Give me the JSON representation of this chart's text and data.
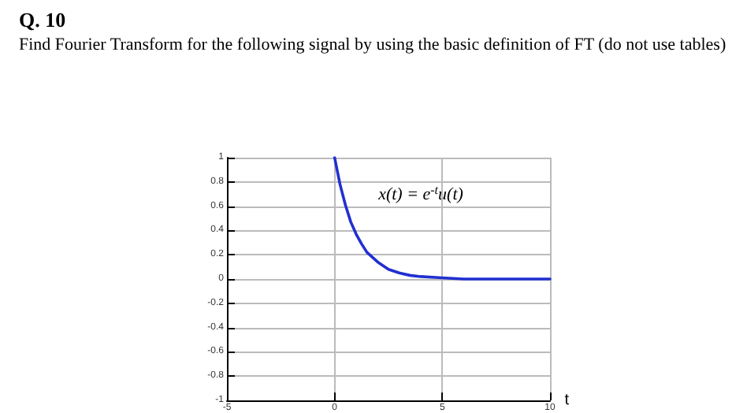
{
  "chart_data": {
    "type": "line",
    "title": "Q. 10",
    "subtitle": "Find Fourier Transform for the following signal by using the basic definition of FT (do not use tables)",
    "xlabel": "t",
    "x": [
      0,
      0.25,
      0.5,
      0.75,
      1,
      1.25,
      1.5,
      2,
      2.5,
      3,
      3.5,
      4,
      5,
      6,
      10
    ],
    "series": [
      {
        "color": "#2130d0",
        "values": [
          1,
          0.78,
          0.61,
          0.47,
          0.37,
          0.29,
          0.22,
          0.14,
          0.08,
          0.05,
          0.03,
          0.02,
          0.01,
          0,
          0
        ]
      }
    ],
    "annotations": [
      "x(t) = e$^{-t}$u(t)"
    ],
    "xlim": [
      -5,
      10
    ],
    "xticks": [
      -5,
      0,
      5,
      10
    ],
    "ylim": [
      -1,
      1
    ],
    "yticks": [
      -1,
      -0.8,
      -0.6,
      -0.4,
      -0.2,
      0,
      0.2,
      0.4,
      0.6,
      0.8,
      1
    ],
    "grid": true,
    "marker": "none",
    "line_style": "solid"
  }
}
